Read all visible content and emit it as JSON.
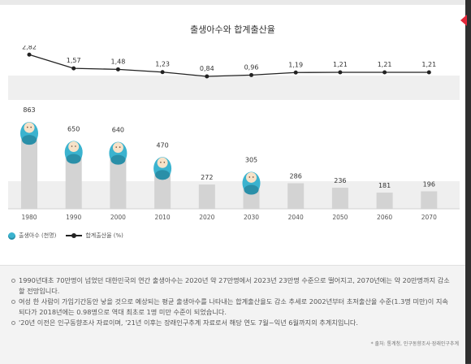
{
  "title": "출생아수와 합계출산율",
  "chart_data": {
    "type": "bar",
    "title": "출생아수와 합계출산율",
    "categories": [
      "1980",
      "1990",
      "2000",
      "2010",
      "2020",
      "2030",
      "2040",
      "2050",
      "2060",
      "2070"
    ],
    "series": [
      {
        "name": "출생아수 (천명)",
        "type": "bar",
        "values": [
          863,
          650,
          640,
          470,
          272,
          305,
          286,
          236,
          181,
          196
        ],
        "labels": [
          "863",
          "650",
          "640",
          "470",
          "272",
          "305",
          "286",
          "236",
          "181",
          "196"
        ],
        "baby_icon": [
          true,
          true,
          true,
          true,
          false,
          true,
          false,
          false,
          false,
          false
        ]
      },
      {
        "name": "합계출산율 (%)",
        "type": "line",
        "values": [
          2.82,
          1.57,
          1.48,
          1.23,
          0.84,
          0.96,
          1.19,
          1.21,
          1.21,
          1.21
        ],
        "labels": [
          "2,82",
          "1,57",
          "1,48",
          "1,23",
          "0,84",
          "0,96",
          "1,19",
          "1,21",
          "1,21",
          "1,21"
        ]
      }
    ],
    "legend_placement": "bottom-left",
    "colors": {
      "bar": "#d3d3d3",
      "line": "#222222",
      "baby": "#3bb3cf",
      "band": "#efefef"
    }
  },
  "legend": {
    "births": "출생아수 (천명)",
    "tfr": "합계출산율 (%)"
  },
  "notes": [
    "1990년대초 70만명이 넘었던 대한민국의 연간 출생아수는 2020년 약 27만명에서 2023년 23만명 수준으로 떨어지고, 2070년에는 약 20만명까지 감소할 전망입니다.",
    "여성 한 사람이 가임기간동안 낳을 것으로 예상되는 평균 출생아수를 나타내는 합계출산율도 감소 추세로 2002년부터 초저출산율 수준(1.3명 미만)이 지속되다가 2018년에는 0.98명으로 역대 최초로 1명 미만 수준이 되었습니다.",
    "'20년 이전은 인구동향조사 자료이며, '21년 이후는 장래인구추계 자료로서 해당 연도 7월~익년 6월까지의 추계치입니다."
  ],
  "source": "* 출처: 통계청, 인구동향조사·장래인구추계"
}
